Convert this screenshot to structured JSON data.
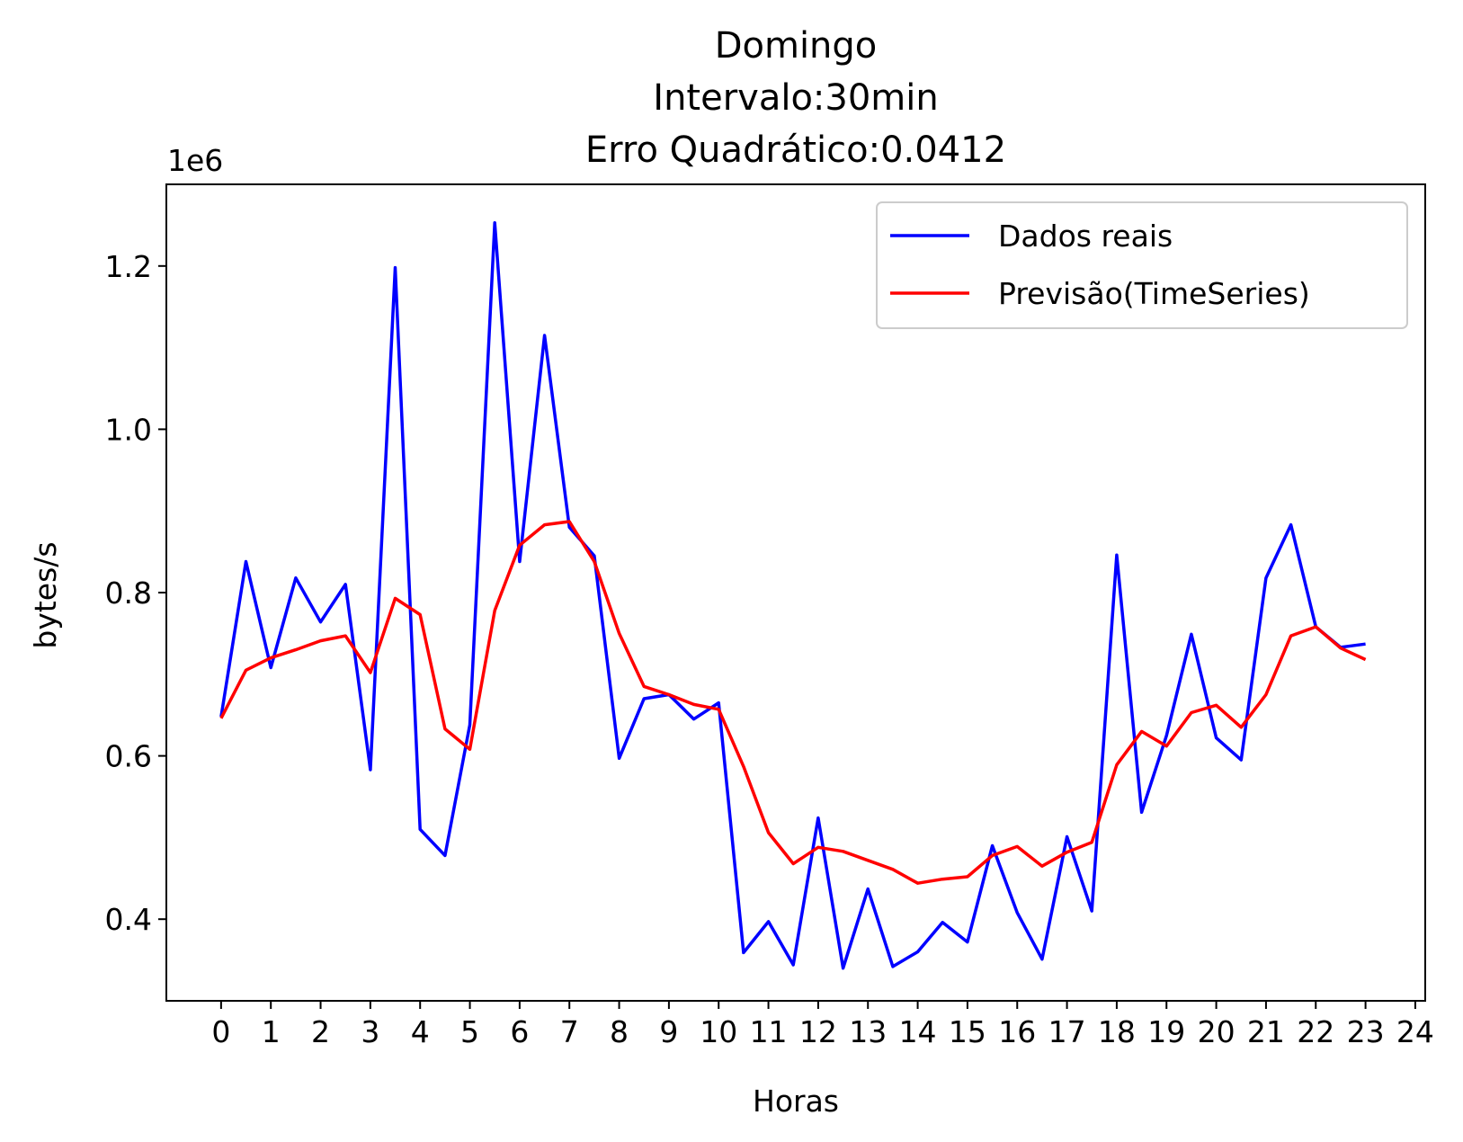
{
  "chart_data": {
    "type": "line",
    "title_lines": [
      "Domingo",
      "Intervalo:30min",
      "Erro Quadrático:0.0412"
    ],
    "xlabel": "Horas",
    "ylabel": "bytes/s",
    "y_multiplier_label": "1e6",
    "xlim": [
      -1.1,
      24.2
    ],
    "ylim": [
      0.3,
      1.3
    ],
    "x_ticks": [
      0,
      1,
      2,
      3,
      4,
      5,
      6,
      7,
      8,
      9,
      10,
      11,
      12,
      13,
      14,
      15,
      16,
      17,
      18,
      19,
      20,
      21,
      22,
      23,
      24
    ],
    "y_ticks": [
      0.4,
      0.6,
      0.8,
      1.0,
      1.2
    ],
    "y_tick_labels": [
      "0.4",
      "0.6",
      "0.8",
      "1.0",
      "1.2"
    ],
    "grid": false,
    "legend_position": "top-right",
    "series": [
      {
        "name": "Dados reais",
        "color": "#0000ff",
        "x": [
          0,
          0.5,
          1,
          1.5,
          2,
          2.5,
          3,
          3.5,
          4,
          4.5,
          5,
          5.5,
          6,
          6.5,
          7,
          7.5,
          8,
          8.5,
          9,
          9.5,
          10,
          10.5,
          11,
          11.5,
          12,
          12.5,
          13,
          13.5,
          14,
          14.5,
          15,
          15.5,
          16,
          16.5,
          17,
          17.5,
          18,
          18.5,
          19,
          19.5,
          20,
          20.5,
          21,
          21.5,
          22,
          22.5,
          23
        ],
        "values": [
          0.648,
          0.838,
          0.708,
          0.818,
          0.764,
          0.81,
          0.583,
          1.198,
          0.51,
          0.478,
          0.638,
          1.253,
          0.838,
          1.115,
          0.88,
          0.845,
          0.597,
          0.67,
          0.675,
          0.645,
          0.665,
          0.359,
          0.397,
          0.344,
          0.524,
          0.34,
          0.437,
          0.342,
          0.36,
          0.396,
          0.372,
          0.49,
          0.408,
          0.351,
          0.501,
          0.41,
          0.846,
          0.531,
          0.625,
          0.749,
          0.622,
          0.595,
          0.818,
          0.883,
          0.758,
          0.733,
          0.737
        ]
      },
      {
        "name": "Previsão(TimeSeries)",
        "color": "#ff0000",
        "x": [
          0,
          0.5,
          1,
          1.5,
          2,
          2.5,
          3,
          3.5,
          4,
          4.5,
          5,
          5.5,
          6,
          6.5,
          7,
          7.5,
          8,
          8.5,
          9,
          9.5,
          10,
          10.5,
          11,
          11.5,
          12,
          12.5,
          13,
          13.5,
          14,
          14.5,
          15,
          15.5,
          16,
          16.5,
          17,
          17.5,
          18,
          18.5,
          19,
          19.5,
          20,
          20.5,
          21,
          21.5,
          22,
          22.5,
          23
        ],
        "values": [
          0.646,
          0.705,
          0.72,
          0.73,
          0.741,
          0.747,
          0.702,
          0.793,
          0.773,
          0.633,
          0.608,
          0.778,
          0.858,
          0.883,
          0.887,
          0.838,
          0.75,
          0.685,
          0.675,
          0.663,
          0.657,
          0.587,
          0.506,
          0.468,
          0.488,
          0.483,
          0.472,
          0.461,
          0.444,
          0.449,
          0.452,
          0.478,
          0.489,
          0.465,
          0.482,
          0.494,
          0.589,
          0.63,
          0.612,
          0.653,
          0.662,
          0.635,
          0.675,
          0.747,
          0.758,
          0.732,
          0.718
        ]
      }
    ]
  }
}
